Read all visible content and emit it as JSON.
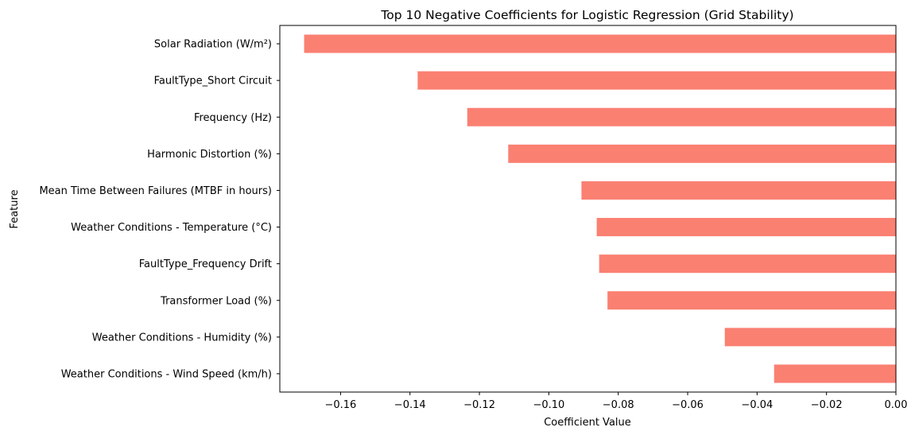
{
  "chart_data": {
    "type": "bar",
    "orientation": "horizontal",
    "title": "Top 10 Negative Coefficients for Logistic Regression (Grid Stability)",
    "xlabel": "Coefficient Value",
    "ylabel": "Feature",
    "categories": [
      "Solar Radiation (W/m²)",
      "FaultType_Short Circuit",
      "Frequency (Hz)",
      "Harmonic Distortion (%)",
      "Mean Time Between Failures (MTBF in hours)",
      "Weather Conditions - Temperature (°C)",
      "FaultType_Frequency Drift",
      "Transformer Load (%)",
      "Weather Conditions - Humidity (%)",
      "Weather Conditions - Wind Speed (km/h)"
    ],
    "values": [
      -0.1705,
      -0.1378,
      -0.1235,
      -0.1117,
      -0.0906,
      -0.0862,
      -0.0855,
      -0.0831,
      -0.0493,
      -0.0351
    ],
    "xlim": [
      -0.1775,
      0.0
    ],
    "xticks": [
      -0.16,
      -0.14,
      -0.12,
      -0.1,
      -0.08,
      -0.06,
      -0.04,
      -0.02,
      0.0
    ],
    "xtick_labels": [
      "−0.16",
      "−0.14",
      "−0.12",
      "−0.10",
      "−0.08",
      "−0.06",
      "−0.04",
      "−0.02",
      "0.00"
    ],
    "bar_color": "#fa8072",
    "grid": false,
    "legend": false
  }
}
